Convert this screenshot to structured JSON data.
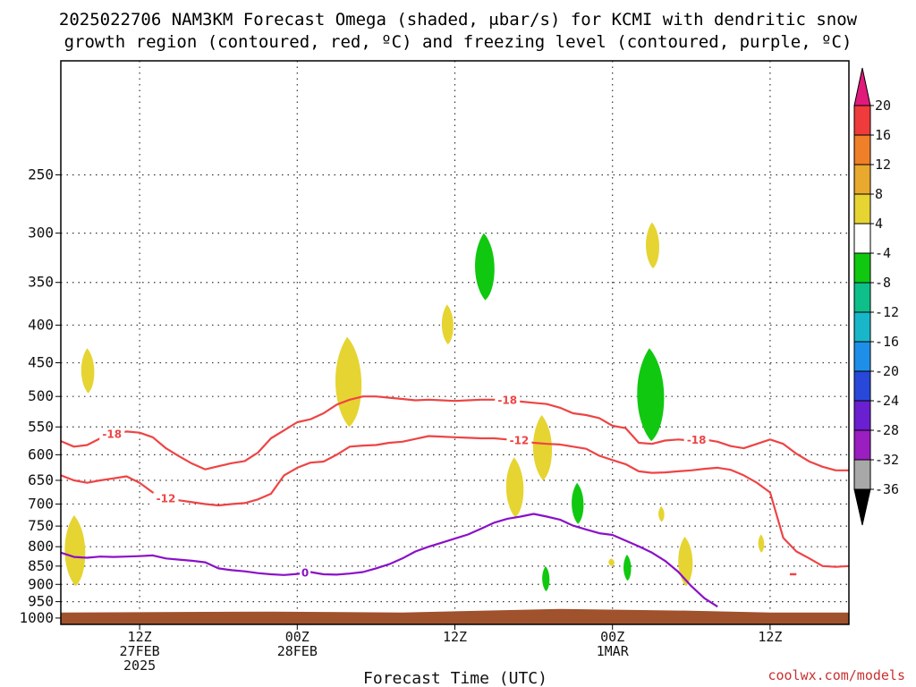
{
  "title_line1": "2025022706 NAM3KM Forecast Omega (shaded, μbar/s) for KCMI with dendritic snow",
  "title_line2": "growth region (contoured, red, ºC) and freezing level (contoured, purple, ºC)",
  "xlabel": "Forecast Time (UTC)",
  "credit": "coolwx.com/models",
  "chart_data": {
    "type": "heatmap",
    "title": "2025022706 NAM3KM Forecast Omega (shaded, μbar/s) for KCMI with dendritic snow growth region (contoured, red, ºC) and freezing level (contoured, purple, ºC)",
    "xlabel": "Forecast Time (UTC)",
    "ylabel": "",
    "x_units": "forecast hour from 2025-02-27 06Z",
    "xlim": [
      0,
      60
    ],
    "ylim": [
      1020,
      175
    ],
    "y_scale": "log pressure (hPa)",
    "yticks": [
      250,
      300,
      350,
      400,
      450,
      500,
      550,
      600,
      650,
      700,
      750,
      800,
      850,
      900,
      950,
      1000
    ],
    "ytick_labels": [
      "250",
      "300",
      "350",
      "400",
      "450",
      "500",
      "550",
      "600",
      "650",
      "700",
      "750",
      "800",
      "850",
      "900",
      "950",
      "1000"
    ],
    "xticks": [
      {
        "hour": 6,
        "lines": [
          "12Z",
          "27FEB",
          "2025"
        ]
      },
      {
        "hour": 18,
        "lines": [
          "00Z",
          "28FEB"
        ]
      },
      {
        "hour": 30,
        "lines": [
          "12Z"
        ]
      },
      {
        "hour": 42,
        "lines": [
          "00Z",
          "1MAR"
        ]
      },
      {
        "hour": 54,
        "lines": [
          "12Z"
        ]
      }
    ],
    "grid": true,
    "colorbar": {
      "labels": [
        "20",
        "16",
        "12",
        "8",
        "4",
        "-4",
        "-8",
        "-12",
        "-16",
        "-20",
        "-24",
        "-28",
        "-32",
        "-36"
      ],
      "colors": [
        "#e0197a",
        "#ef3b3b",
        "#ef7f28",
        "#e9a92e",
        "#e6d432",
        "#ffffff",
        "#10c810",
        "#0fbf8a",
        "#19b6c9",
        "#1e8fe8",
        "#2848d9",
        "#6a1fd0",
        "#9a1ec0",
        "#a8a8a8",
        "#000000"
      ],
      "position": "right"
    },
    "contours": [
      {
        "name": "-18",
        "color": "#ee4444",
        "points": [
          [
            0,
            575
          ],
          [
            1,
            585
          ],
          [
            2,
            582
          ],
          [
            3,
            570
          ],
          [
            4,
            562
          ],
          [
            5,
            558
          ],
          [
            6,
            560
          ],
          [
            7,
            568
          ],
          [
            8,
            588
          ],
          [
            9,
            603
          ],
          [
            10,
            617
          ],
          [
            11,
            628
          ],
          [
            12,
            622
          ],
          [
            13,
            616
          ],
          [
            14,
            612
          ],
          [
            15,
            596
          ],
          [
            16,
            570
          ],
          [
            17,
            556
          ],
          [
            18,
            542
          ],
          [
            19,
            537
          ],
          [
            20,
            527
          ],
          [
            21,
            513
          ],
          [
            22,
            505
          ],
          [
            23,
            500
          ],
          [
            24,
            500
          ],
          [
            25,
            502
          ],
          [
            26,
            504
          ],
          [
            27,
            506
          ],
          [
            28,
            505
          ],
          [
            29,
            506
          ],
          [
            30,
            507
          ],
          [
            31,
            506
          ],
          [
            32,
            505
          ],
          [
            33,
            505
          ],
          [
            34,
            506
          ],
          [
            35,
            508
          ],
          [
            36,
            510
          ],
          [
            37,
            512
          ],
          [
            38,
            518
          ],
          [
            39,
            527
          ],
          [
            40,
            530
          ],
          [
            41,
            535
          ],
          [
            42,
            548
          ],
          [
            43,
            552
          ],
          [
            44,
            578
          ],
          [
            45,
            580
          ],
          [
            46,
            574
          ],
          [
            47,
            572
          ],
          [
            48,
            574
          ],
          [
            49,
            572
          ],
          [
            50,
            576
          ],
          [
            51,
            584
          ],
          [
            52,
            588
          ],
          [
            53,
            580
          ],
          [
            54,
            572
          ],
          [
            55,
            580
          ],
          [
            56,
            598
          ],
          [
            57,
            613
          ],
          [
            58,
            623
          ],
          [
            59,
            630
          ],
          [
            60,
            630
          ]
        ]
      },
      {
        "name": "-12",
        "color": "#ee4444",
        "points": [
          [
            0,
            640
          ],
          [
            1,
            650
          ],
          [
            2,
            655
          ],
          [
            3,
            650
          ],
          [
            4,
            646
          ],
          [
            5,
            642
          ],
          [
            6,
            655
          ],
          [
            7,
            675
          ],
          [
            8,
            688
          ],
          [
            9,
            692
          ],
          [
            10,
            696
          ],
          [
            11,
            700
          ],
          [
            12,
            703
          ],
          [
            13,
            700
          ],
          [
            14,
            698
          ],
          [
            15,
            690
          ],
          [
            16,
            678
          ],
          [
            17,
            640
          ],
          [
            18,
            625
          ],
          [
            19,
            615
          ],
          [
            20,
            613
          ],
          [
            21,
            600
          ],
          [
            22,
            585
          ],
          [
            23,
            583
          ],
          [
            24,
            582
          ],
          [
            25,
            578
          ],
          [
            26,
            576
          ],
          [
            27,
            571
          ],
          [
            28,
            566
          ],
          [
            29,
            567
          ],
          [
            30,
            568
          ],
          [
            31,
            569
          ],
          [
            32,
            570
          ],
          [
            33,
            570
          ],
          [
            34,
            572
          ],
          [
            35,
            574
          ],
          [
            36,
            578
          ],
          [
            37,
            580
          ],
          [
            38,
            581
          ],
          [
            39,
            585
          ],
          [
            40,
            589
          ],
          [
            41,
            602
          ],
          [
            42,
            610
          ],
          [
            43,
            618
          ],
          [
            44,
            632
          ],
          [
            45,
            635
          ],
          [
            46,
            634
          ],
          [
            47,
            632
          ],
          [
            48,
            630
          ],
          [
            49,
            627
          ],
          [
            50,
            625
          ],
          [
            51,
            629
          ],
          [
            52,
            640
          ],
          [
            53,
            655
          ],
          [
            54,
            675
          ],
          [
            55,
            778
          ],
          [
            56,
            812
          ],
          [
            57,
            830
          ],
          [
            58,
            850
          ],
          [
            59,
            852
          ],
          [
            60,
            850
          ]
        ]
      },
      {
        "name": "0",
        "color": "#8a10c8",
        "points": [
          [
            0,
            815
          ],
          [
            1,
            826
          ],
          [
            2,
            828
          ],
          [
            3,
            825
          ],
          [
            4,
            826
          ],
          [
            5,
            825
          ],
          [
            6,
            824
          ],
          [
            7,
            822
          ],
          [
            8,
            830
          ],
          [
            9,
            833
          ],
          [
            10,
            836
          ],
          [
            11,
            840
          ],
          [
            12,
            856
          ],
          [
            13,
            861
          ],
          [
            14,
            864
          ],
          [
            15,
            869
          ],
          [
            16,
            872
          ],
          [
            17,
            874
          ],
          [
            18,
            871
          ],
          [
            19,
            866
          ],
          [
            20,
            872
          ],
          [
            21,
            873
          ],
          [
            22,
            870
          ],
          [
            23,
            866
          ],
          [
            24,
            856
          ],
          [
            25,
            845
          ],
          [
            26,
            830
          ],
          [
            27,
            812
          ],
          [
            28,
            800
          ],
          [
            29,
            790
          ],
          [
            30,
            780
          ],
          [
            31,
            770
          ],
          [
            32,
            756
          ],
          [
            33,
            742
          ],
          [
            34,
            733
          ],
          [
            35,
            728
          ],
          [
            36,
            722
          ],
          [
            37,
            728
          ],
          [
            38,
            735
          ],
          [
            39,
            749
          ],
          [
            40,
            758
          ],
          [
            41,
            767
          ],
          [
            42,
            771
          ],
          [
            43,
            785
          ],
          [
            44,
            799
          ],
          [
            45,
            815
          ],
          [
            46,
            836
          ],
          [
            47,
            865
          ],
          [
            48,
            905
          ],
          [
            49,
            940
          ],
          [
            50,
            965
          ]
        ]
      }
    ],
    "shaded_regions": [
      {
        "value_range": [
          4,
          8
        ],
        "color": "#e6d432",
        "center_hour": 1.0,
        "p_top": 725,
        "p_bottom": 905
      },
      {
        "value_range": [
          4,
          8
        ],
        "color": "#e6d432",
        "center_hour": 2.0,
        "p_top": 430,
        "p_bottom": 495
      },
      {
        "value_range": [
          4,
          8
        ],
        "color": "#e6d432",
        "center_hour": 21.8,
        "p_top": 415,
        "p_bottom": 550
      },
      {
        "value_range": [
          4,
          8
        ],
        "color": "#e6d432",
        "center_hour": 29.4,
        "p_top": 375,
        "p_bottom": 425
      },
      {
        "value_range": [
          4,
          8
        ],
        "color": "#e6d432",
        "center_hour": 34.5,
        "p_top": 605,
        "p_bottom": 730
      },
      {
        "value_range": [
          4,
          8
        ],
        "color": "#e6d432",
        "center_hour": 36.6,
        "p_top": 530,
        "p_bottom": 650
      },
      {
        "value_range": [
          4,
          8
        ],
        "color": "#e6d432",
        "center_hour": 45.0,
        "p_top": 290,
        "p_bottom": 335
      },
      {
        "value_range": [
          4,
          8
        ],
        "color": "#e6d432",
        "center_hour": 45.7,
        "p_top": 705,
        "p_bottom": 740
      },
      {
        "value_range": [
          4,
          8
        ],
        "color": "#e6d432",
        "center_hour": 47.5,
        "p_top": 775,
        "p_bottom": 905
      },
      {
        "value_range": [
          4,
          8
        ],
        "color": "#e6d432",
        "center_hour": 53.3,
        "p_top": 770,
        "p_bottom": 815
      },
      {
        "value_range": [
          4,
          8
        ],
        "color": "#e6d432",
        "center_hour": 41.9,
        "p_top": 830,
        "p_bottom": 850
      },
      {
        "value_range": [
          -8,
          -4
        ],
        "color": "#10c810",
        "center_hour": 32.2,
        "p_top": 300,
        "p_bottom": 370
      },
      {
        "value_range": [
          -8,
          -4
        ],
        "color": "#10c810",
        "center_hour": 44.8,
        "p_top": 430,
        "p_bottom": 575
      },
      {
        "value_range": [
          -8,
          -4
        ],
        "color": "#10c810",
        "center_hour": 39.3,
        "p_top": 655,
        "p_bottom": 745
      },
      {
        "value_range": [
          -8,
          -4
        ],
        "color": "#10c810",
        "center_hour": 36.9,
        "p_top": 850,
        "p_bottom": 920
      },
      {
        "value_range": [
          -8,
          -4
        ],
        "color": "#10c810",
        "center_hour": 43.1,
        "p_top": 820,
        "p_bottom": 890
      }
    ],
    "terrain": {
      "color": "#a0522d",
      "surface_pressure_hPa": 980
    }
  }
}
